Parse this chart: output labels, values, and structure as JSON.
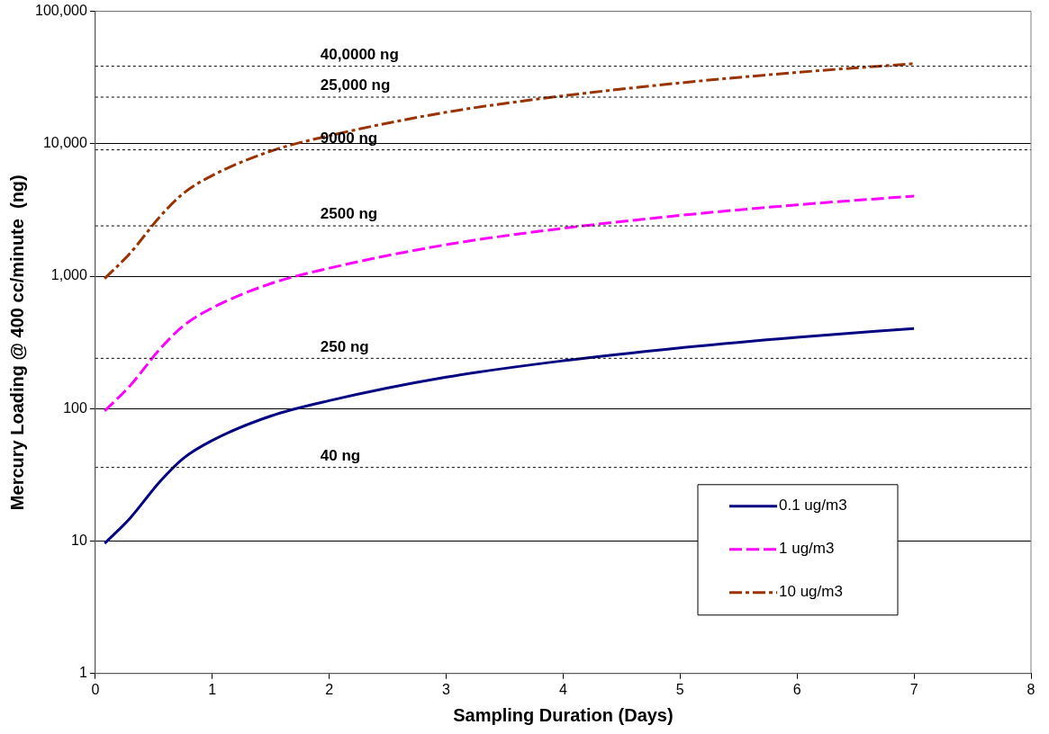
{
  "chart_data": {
    "type": "line",
    "xlabel": "Sampling Duration (Days)",
    "ylabel": "Mercury Loading @ 400 cc/minute  (ng)",
    "log": "y",
    "grid": "y",
    "legend": "bottom right",
    "marker": "none",
    "xlim": [
      0,
      8
    ],
    "xticks": [
      0,
      1,
      2,
      3,
      4,
      5,
      6,
      7,
      8
    ],
    "ylim": [
      1,
      100000
    ],
    "yticks": [
      {
        "value": 1,
        "label": "1"
      },
      {
        "value": 10,
        "label": "10"
      },
      {
        "value": 100,
        "label": "100"
      },
      {
        "value": 1000,
        "label": "1,000"
      },
      {
        "value": 10000,
        "label": "10,000"
      },
      {
        "value": 100000,
        "label": "100,000"
      }
    ],
    "series": [
      {
        "name": "0.1 ug/m3",
        "color": "#000080",
        "line_style": "solid",
        "x": [
          0.08,
          0.3,
          0.55,
          0.75,
          1,
          1.5,
          2,
          3,
          4,
          5,
          6,
          7
        ],
        "values": [
          9.6,
          15,
          28,
          42,
          57.6,
          88,
          115,
          173,
          230,
          288,
          346,
          403
        ]
      },
      {
        "name": "1 ug/m3",
        "color": "#ff00ff",
        "line_style": "dashed",
        "x": [
          0.08,
          0.3,
          0.55,
          0.75,
          1,
          1.5,
          2,
          3,
          4,
          5,
          6,
          7
        ],
        "values": [
          96,
          150,
          280,
          420,
          576,
          880,
          1150,
          1730,
          2300,
          2880,
          3460,
          4030
        ]
      },
      {
        "name": "10 ug/m3",
        "color": "#993300",
        "line_style": "dashdot",
        "x": [
          0.08,
          0.3,
          0.55,
          0.75,
          1,
          1.5,
          2,
          3,
          4,
          5,
          6,
          7
        ],
        "values": [
          960,
          1500,
          2800,
          4200,
          5760,
          8800,
          11500,
          17300,
          23000,
          28800,
          34600,
          40300
        ]
      }
    ],
    "ref_lines": [
      {
        "axis": "y",
        "value": 36,
        "label": "40 ng",
        "color": "#000000",
        "line_style": "dotted"
      },
      {
        "axis": "y",
        "value": 240,
        "label": "250 ng",
        "color": "#000000",
        "line_style": "dotted"
      },
      {
        "axis": "y",
        "value": 2400,
        "label": "2500 ng",
        "color": "#000000",
        "line_style": "dotted"
      },
      {
        "axis": "y",
        "value": 9000,
        "label": "9000 ng",
        "color": "#000000",
        "line_style": "dotted"
      },
      {
        "axis": "y",
        "value": 22500,
        "label": "25,000 ng",
        "color": "#000000",
        "line_style": "dotted"
      },
      {
        "axis": "y",
        "value": 38500,
        "label": "40,0000 ng",
        "color": "#000000",
        "line_style": "dotted"
      }
    ]
  }
}
